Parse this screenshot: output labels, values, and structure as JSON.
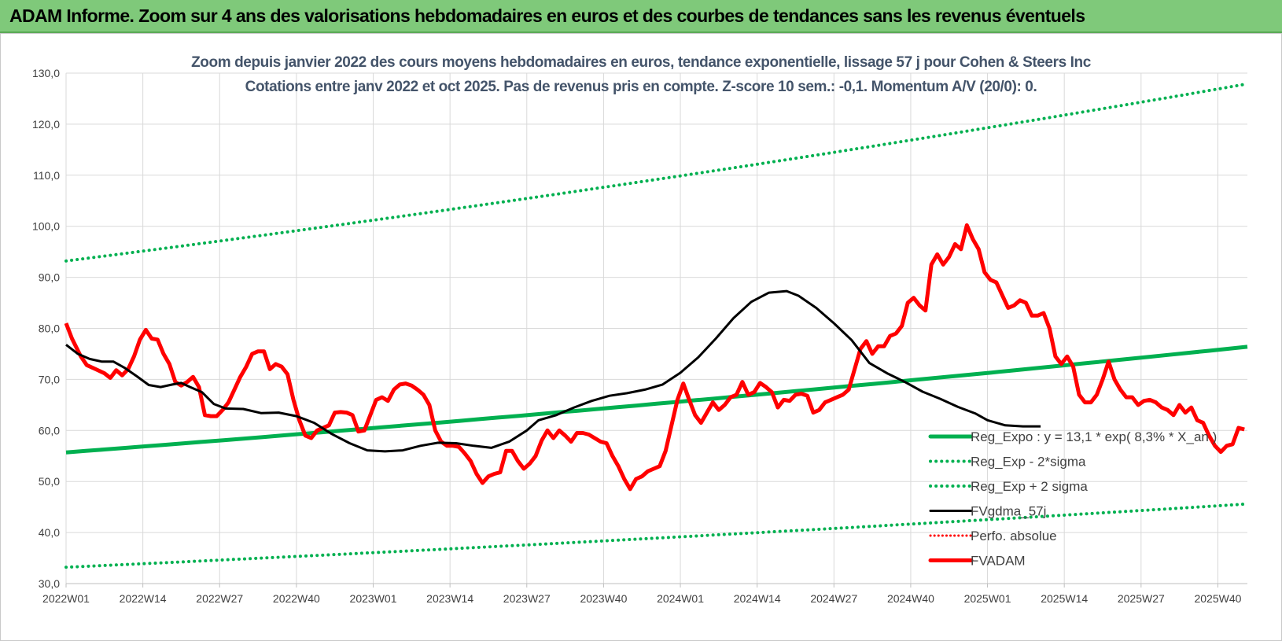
{
  "banner": {
    "title": "ADAM Informe. Zoom sur 4 ans des valorisations hebdomadaires en euros et des courbes de tendances sans les revenus éventuels"
  },
  "colors": {
    "banner_bg": "#7fc97a",
    "title_text": "#44546a",
    "reg_expo": "#00b050",
    "fvgdma": "#000000",
    "fvadam": "#ff0000",
    "perfo": "#ff0000",
    "grid": "#d9d9d9"
  },
  "chart_data": {
    "type": "line",
    "title_line1": "Zoom depuis janvier 2022 des cours moyens hebdomadaires en euros, tendance exponentielle, lissage 57 j pour Cohen & Steers Inc",
    "title_line2": "Cotations entre janv 2022 et oct 2025. Pas de revenus pris en compte. Z-score 10 sem.: -0,1.  Momentum A/V (20/0): 0.",
    "xlabel": "",
    "ylabel": "",
    "ylim": [
      30,
      130
    ],
    "yticks": [
      "130,0",
      "120,0",
      "110,0",
      "100,0",
      "90,0",
      "80,0",
      "70,0",
      "60,0",
      "50,0",
      "40,0",
      "30,0"
    ],
    "ytick_values": [
      130,
      120,
      110,
      100,
      90,
      80,
      70,
      60,
      50,
      40,
      30
    ],
    "xticks": [
      "2022W01",
      "2022W14",
      "2022W27",
      "2022W40",
      "2023W01",
      "2023W14",
      "2023W27",
      "2023W40",
      "2024W01",
      "2024W14",
      "2024W27",
      "2024W40",
      "2025W01",
      "2025W14",
      "2025W27",
      "2025W40"
    ],
    "xtick_index": [
      0,
      13,
      26,
      39,
      52,
      65,
      78,
      91,
      104,
      117,
      130,
      143,
      156,
      169,
      182,
      195
    ],
    "x_count": 201,
    "legend_position": "right",
    "series": [
      {
        "name": "Reg_Expo : y = 13,1 * exp( 8,3% * X_an )",
        "style": "solid-thick",
        "start": 55.7,
        "end": 76.4
      },
      {
        "name": "Reg_Exp - 2*sigma",
        "style": "dotted",
        "start": 33.2,
        "end": 45.6
      },
      {
        "name": "Reg_Exp + 2 sigma",
        "style": "dotted",
        "start": 93.2,
        "end": 127.9
      },
      {
        "name": "FVgdma_57j",
        "style": "solid",
        "points": [
          [
            0,
            76.8
          ],
          [
            4,
            75.0
          ],
          [
            8,
            74.0
          ],
          [
            12,
            73.5
          ],
          [
            16,
            73.5
          ],
          [
            20,
            72.2
          ],
          [
            24,
            70.6
          ],
          [
            28,
            68.9
          ],
          [
            32,
            68.5
          ],
          [
            36,
            69.0
          ],
          [
            39,
            69.3
          ],
          [
            42,
            68.5
          ],
          [
            46,
            67.5
          ],
          [
            50,
            65.2
          ],
          [
            54,
            64.3
          ],
          [
            60,
            64.2
          ],
          [
            66,
            63.4
          ],
          [
            72,
            63.5
          ],
          [
            78,
            62.8
          ],
          [
            84,
            61.5
          ],
          [
            90,
            59.3
          ],
          [
            96,
            57.5
          ],
          [
            102,
            56.1
          ],
          [
            108,
            55.9
          ],
          [
            114,
            56.1
          ],
          [
            120,
            57.0
          ],
          [
            126,
            57.6
          ],
          [
            132,
            57.5
          ],
          [
            138,
            57.0
          ],
          [
            144,
            56.6
          ],
          [
            150,
            57.8
          ],
          [
            156,
            60.0
          ],
          [
            160,
            62.0
          ],
          [
            166,
            63.0
          ],
          [
            172,
            64.5
          ],
          [
            178,
            65.8
          ],
          [
            184,
            66.8
          ],
          [
            190,
            67.3
          ],
          [
            196,
            68.0
          ],
          [
            202,
            69.0
          ],
          [
            208,
            71.3
          ],
          [
            214,
            74.3
          ],
          [
            220,
            78.0
          ],
          [
            226,
            82.0
          ],
          [
            232,
            85.2
          ],
          [
            238,
            87.0
          ],
          [
            244,
            87.3
          ],
          [
            248,
            86.4
          ],
          [
            254,
            84.0
          ],
          [
            260,
            81.0
          ],
          [
            266,
            77.7
          ],
          [
            272,
            73.2
          ],
          [
            278,
            71.2
          ],
          [
            284,
            69.5
          ],
          [
            290,
            67.6
          ],
          [
            296,
            66.2
          ],
          [
            302,
            64.6
          ],
          [
            308,
            63.3
          ],
          [
            312,
            62.0
          ],
          [
            318,
            61.0
          ],
          [
            324,
            60.8
          ],
          [
            330,
            60.8
          ]
        ]
      },
      {
        "name": "Perfo. absolue",
        "style": "dotted-red",
        "points": []
      },
      {
        "name": "FVADAM",
        "style": "solid-red-thick",
        "points": [
          [
            0,
            81.0
          ],
          [
            2,
            78.0
          ],
          [
            5,
            74.5
          ],
          [
            7,
            72.8
          ],
          [
            10,
            72.0
          ],
          [
            13,
            71.2
          ],
          [
            15,
            70.3
          ],
          [
            17,
            71.8
          ],
          [
            19,
            70.8
          ],
          [
            21,
            72.0
          ],
          [
            23,
            74.5
          ],
          [
            25,
            77.8
          ],
          [
            27,
            79.7
          ],
          [
            29,
            78.0
          ],
          [
            31,
            77.8
          ],
          [
            33,
            75.0
          ],
          [
            35,
            73.0
          ],
          [
            37,
            69.5
          ],
          [
            39,
            68.8
          ],
          [
            41,
            69.5
          ],
          [
            43,
            70.5
          ],
          [
            45,
            68.5
          ],
          [
            47,
            63.0
          ],
          [
            49,
            62.8
          ],
          [
            51,
            62.8
          ],
          [
            53,
            64.0
          ],
          [
            55,
            65.5
          ],
          [
            57,
            68.0
          ],
          [
            59,
            70.5
          ],
          [
            61,
            72.5
          ],
          [
            63,
            75.0
          ],
          [
            65,
            75.5
          ],
          [
            67,
            75.5
          ],
          [
            69,
            72.0
          ],
          [
            71,
            73.0
          ],
          [
            73,
            72.5
          ],
          [
            75,
            71.0
          ],
          [
            77,
            66.0
          ],
          [
            79,
            62.0
          ],
          [
            81,
            59.0
          ],
          [
            83,
            58.5
          ],
          [
            85,
            60.0
          ],
          [
            87,
            60.5
          ],
          [
            89,
            61.0
          ],
          [
            91,
            63.5
          ],
          [
            93,
            63.6
          ],
          [
            95,
            63.5
          ],
          [
            97,
            63.0
          ],
          [
            99,
            59.8
          ],
          [
            101,
            60.0
          ],
          [
            103,
            63.0
          ],
          [
            105,
            66.0
          ],
          [
            107,
            66.5
          ],
          [
            109,
            65.8
          ],
          [
            111,
            68.0
          ],
          [
            113,
            69.0
          ],
          [
            115,
            69.2
          ],
          [
            117,
            68.8
          ],
          [
            119,
            68.0
          ],
          [
            121,
            67.0
          ],
          [
            123,
            65.0
          ],
          [
            125,
            60.0
          ],
          [
            127,
            57.8
          ],
          [
            129,
            57.0
          ],
          [
            131,
            57.0
          ],
          [
            133,
            56.8
          ],
          [
            135,
            55.5
          ],
          [
            137,
            54.0
          ],
          [
            139,
            51.5
          ],
          [
            141,
            49.7
          ],
          [
            143,
            51.0
          ],
          [
            145,
            51.5
          ],
          [
            147,
            51.8
          ],
          [
            149,
            56.0
          ],
          [
            151,
            56.0
          ],
          [
            153,
            54.0
          ],
          [
            155,
            52.5
          ],
          [
            157,
            53.5
          ],
          [
            159,
            55.0
          ],
          [
            161,
            58.0
          ],
          [
            163,
            60.0
          ],
          [
            165,
            58.5
          ],
          [
            167,
            60.0
          ],
          [
            169,
            59.0
          ],
          [
            171,
            57.8
          ],
          [
            173,
            59.5
          ],
          [
            175,
            59.5
          ],
          [
            177,
            59.2
          ],
          [
            179,
            58.5
          ],
          [
            181,
            57.8
          ],
          [
            183,
            57.5
          ],
          [
            185,
            55.0
          ],
          [
            187,
            53.0
          ],
          [
            189,
            50.5
          ],
          [
            191,
            48.5
          ],
          [
            193,
            50.5
          ],
          [
            195,
            51.0
          ],
          [
            197,
            52.0
          ],
          [
            199,
            52.5
          ],
          [
            201,
            53.0
          ],
          [
            203,
            56.0
          ],
          [
            205,
            61.0
          ],
          [
            207,
            66.0
          ],
          [
            209,
            69.2
          ],
          [
            211,
            66.0
          ],
          [
            213,
            63.0
          ],
          [
            215,
            61.5
          ],
          [
            217,
            63.5
          ],
          [
            219,
            65.5
          ],
          [
            221,
            64.0
          ],
          [
            223,
            65.0
          ],
          [
            225,
            66.5
          ],
          [
            227,
            67.0
          ],
          [
            229,
            69.5
          ],
          [
            231,
            67.0
          ],
          [
            233,
            67.5
          ],
          [
            235,
            69.3
          ],
          [
            237,
            68.5
          ],
          [
            239,
            67.5
          ],
          [
            241,
            64.5
          ],
          [
            243,
            66.0
          ],
          [
            245,
            65.8
          ],
          [
            247,
            67.0
          ],
          [
            249,
            67.2
          ],
          [
            251,
            66.8
          ],
          [
            253,
            63.5
          ],
          [
            255,
            64.0
          ],
          [
            257,
            65.5
          ],
          [
            259,
            66.0
          ],
          [
            261,
            66.5
          ],
          [
            263,
            67.0
          ],
          [
            265,
            68.0
          ],
          [
            267,
            72.0
          ],
          [
            269,
            76.0
          ],
          [
            271,
            77.5
          ],
          [
            273,
            75.0
          ],
          [
            275,
            76.5
          ],
          [
            277,
            76.5
          ],
          [
            279,
            78.5
          ],
          [
            281,
            79.0
          ],
          [
            283,
            80.5
          ],
          [
            285,
            85.0
          ],
          [
            287,
            86.0
          ],
          [
            289,
            84.5
          ],
          [
            291,
            83.5
          ],
          [
            293,
            92.5
          ],
          [
            295,
            94.5
          ],
          [
            297,
            92.5
          ],
          [
            299,
            94.0
          ],
          [
            301,
            96.5
          ],
          [
            303,
            95.5
          ],
          [
            305,
            100.2
          ],
          [
            307,
            97.5
          ],
          [
            309,
            95.5
          ],
          [
            311,
            91.0
          ],
          [
            313,
            89.5
          ],
          [
            315,
            89.0
          ],
          [
            317,
            86.5
          ],
          [
            319,
            84.0
          ],
          [
            321,
            84.5
          ],
          [
            323,
            85.5
          ],
          [
            325,
            85.0
          ],
          [
            327,
            82.5
          ],
          [
            329,
            82.5
          ],
          [
            331,
            83.0
          ],
          [
            333,
            80.0
          ],
          [
            335,
            74.5
          ],
          [
            337,
            73.0
          ],
          [
            339,
            74.5
          ],
          [
            341,
            72.5
          ],
          [
            343,
            67.0
          ],
          [
            345,
            65.5
          ],
          [
            347,
            65.5
          ],
          [
            349,
            67.0
          ],
          [
            351,
            70.0
          ],
          [
            353,
            73.5
          ],
          [
            355,
            70.0
          ],
          [
            357,
            68.0
          ],
          [
            359,
            66.5
          ],
          [
            361,
            66.5
          ],
          [
            363,
            65.0
          ],
          [
            365,
            65.8
          ],
          [
            367,
            66.0
          ],
          [
            369,
            65.5
          ],
          [
            371,
            64.5
          ],
          [
            373,
            64.0
          ],
          [
            375,
            63.0
          ],
          [
            377,
            65.0
          ],
          [
            379,
            63.5
          ],
          [
            381,
            64.5
          ],
          [
            383,
            62.0
          ],
          [
            385,
            61.5
          ],
          [
            387,
            59.0
          ],
          [
            389,
            57.0
          ],
          [
            391,
            55.8
          ],
          [
            393,
            57.0
          ],
          [
            395,
            57.3
          ],
          [
            397,
            60.5
          ],
          [
            399,
            60.2
          ]
        ]
      }
    ]
  }
}
